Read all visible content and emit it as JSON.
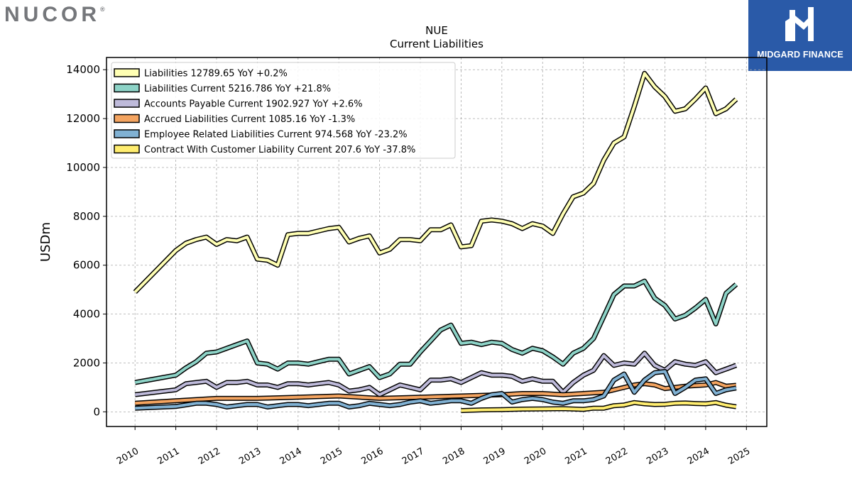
{
  "header": {
    "logo_text": "NUCOR",
    "logo_mark": "®",
    "badge_text": "MIDGARD FINANCE",
    "badge_icon": "stylized-m-icon"
  },
  "chart_data": {
    "type": "line",
    "title": "NUE",
    "subtitle": "Current  Liabilities",
    "ylabel": "USDm",
    "xlabel": "",
    "xlim": [
      2009.3,
      2025.5
    ],
    "ylim": [
      -600,
      14500
    ],
    "yticks": [
      0,
      2000,
      4000,
      6000,
      8000,
      10000,
      12000,
      14000
    ],
    "xticks": [
      2010,
      2011,
      2012,
      2013,
      2014,
      2015,
      2016,
      2017,
      2018,
      2019,
      2020,
      2021,
      2022,
      2023,
      2024,
      2025
    ],
    "grid": true,
    "legend_position": "upper-left",
    "series": [
      {
        "name": "Liabilities",
        "legend_label": "Liabilities  12789.65 YoY +0.2%",
        "color": "#ffffb3",
        "x": [
          2010.0,
          2011.0,
          2011.25,
          2011.5,
          2011.75,
          2012.0,
          2012.25,
          2012.5,
          2012.75,
          2013.0,
          2013.25,
          2013.5,
          2013.75,
          2014.0,
          2014.25,
          2014.5,
          2014.75,
          2015.0,
          2015.25,
          2015.5,
          2015.75,
          2016.0,
          2016.25,
          2016.5,
          2016.75,
          2017.0,
          2017.25,
          2017.5,
          2017.75,
          2018.0,
          2018.25,
          2018.5,
          2018.75,
          2019.0,
          2019.25,
          2019.5,
          2019.75,
          2020.0,
          2020.25,
          2020.5,
          2020.75,
          2021.0,
          2021.25,
          2021.5,
          2021.75,
          2022.0,
          2022.25,
          2022.5,
          2022.75,
          2023.0,
          2023.25,
          2023.5,
          2023.75,
          2024.0,
          2024.25,
          2024.5,
          2024.75
        ],
        "values": [
          4900,
          6600,
          6900,
          7050,
          7150,
          6850,
          7050,
          7000,
          7150,
          6250,
          6200,
          6000,
          7250,
          7300,
          7300,
          7400,
          7500,
          7550,
          6950,
          7100,
          7200,
          6500,
          6650,
          7050,
          7050,
          7000,
          7450,
          7450,
          7650,
          6750,
          6800,
          7800,
          7850,
          7800,
          7700,
          7500,
          7700,
          7600,
          7300,
          8100,
          8800,
          8950,
          9350,
          10300,
          11000,
          11250,
          12500,
          13850,
          13300,
          12900,
          12300,
          12400,
          12800,
          13250,
          12200,
          12400,
          12790
        ]
      },
      {
        "name": "Liabilities Current",
        "legend_label": "Liabilities Current  5216.786 YoY +21.8%",
        "color": "#8dd3c7",
        "x": [
          2010.0,
          2011.0,
          2011.25,
          2011.5,
          2011.75,
          2012.0,
          2012.25,
          2012.5,
          2012.75,
          2013.0,
          2013.25,
          2013.5,
          2013.75,
          2014.0,
          2014.25,
          2014.5,
          2014.75,
          2015.0,
          2015.25,
          2015.5,
          2015.75,
          2016.0,
          2016.25,
          2016.5,
          2016.75,
          2017.0,
          2017.25,
          2017.5,
          2017.75,
          2018.0,
          2018.25,
          2018.5,
          2018.75,
          2019.0,
          2019.25,
          2019.5,
          2019.75,
          2020.0,
          2020.25,
          2020.5,
          2020.75,
          2021.0,
          2021.25,
          2021.5,
          2021.75,
          2022.0,
          2022.25,
          2022.5,
          2022.75,
          2023.0,
          2023.25,
          2023.5,
          2023.75,
          2024.0,
          2024.25,
          2024.5,
          2024.75
        ],
        "values": [
          1200,
          1500,
          1800,
          2050,
          2400,
          2450,
          2600,
          2750,
          2900,
          2000,
          1950,
          1750,
          2000,
          2000,
          1950,
          2050,
          2150,
          2150,
          1550,
          1700,
          1850,
          1400,
          1550,
          1950,
          1950,
          2450,
          2900,
          3350,
          3550,
          2800,
          2850,
          2750,
          2850,
          2800,
          2550,
          2400,
          2600,
          2500,
          2250,
          1950,
          2400,
          2600,
          3000,
          3900,
          4800,
          5150,
          5150,
          5350,
          4650,
          4350,
          3800,
          3950,
          4250,
          4600,
          3600,
          4850,
          5217
        ]
      },
      {
        "name": "Accounts Payable Current",
        "legend_label": "Accounts Payable Current  1902.927 YoY +2.6%",
        "color": "#bebada",
        "x": [
          2010.0,
          2011.0,
          2011.25,
          2011.5,
          2011.75,
          2012.0,
          2012.25,
          2012.5,
          2012.75,
          2013.0,
          2013.25,
          2013.5,
          2013.75,
          2014.0,
          2014.25,
          2014.5,
          2014.75,
          2015.0,
          2015.25,
          2015.5,
          2015.75,
          2016.0,
          2016.25,
          2016.5,
          2016.75,
          2017.0,
          2017.25,
          2017.5,
          2017.75,
          2018.0,
          2018.25,
          2018.5,
          2018.75,
          2019.0,
          2019.25,
          2019.5,
          2019.75,
          2020.0,
          2020.25,
          2020.5,
          2020.75,
          2021.0,
          2021.25,
          2021.5,
          2021.75,
          2022.0,
          2022.25,
          2022.5,
          2022.75,
          2023.0,
          2023.25,
          2023.5,
          2023.75,
          2024.0,
          2024.25,
          2024.5,
          2024.75
        ],
        "values": [
          700,
          900,
          1150,
          1200,
          1250,
          1000,
          1200,
          1200,
          1250,
          1100,
          1100,
          1000,
          1150,
          1150,
          1100,
          1150,
          1200,
          1100,
          850,
          900,
          1000,
          700,
          900,
          1100,
          1000,
          900,
          1300,
          1300,
          1350,
          1200,
          1400,
          1600,
          1500,
          1500,
          1450,
          1250,
          1350,
          1250,
          1250,
          800,
          1200,
          1500,
          1700,
          2300,
          1900,
          2000,
          1950,
          2400,
          1900,
          1700,
          2050,
          1950,
          1900,
          2050,
          1600,
          1750,
          1903
        ]
      },
      {
        "name": "Accrued Liabilities Current",
        "legend_label": "Accrued Liabilities Current  1085.16 YoY -1.3%",
        "color": "#f4a460",
        "x": [
          2010.0,
          2011.0,
          2012.0,
          2013.0,
          2014.0,
          2015.0,
          2016.0,
          2017.0,
          2018.0,
          2019.0,
          2019.5,
          2020.0,
          2020.5,
          2021.0,
          2021.5,
          2022.0,
          2022.25,
          2022.5,
          2022.75,
          2023.0,
          2023.5,
          2024.0,
          2024.25,
          2024.5,
          2024.75
        ],
        "values": [
          350,
          450,
          550,
          550,
          600,
          650,
          550,
          600,
          650,
          700,
          750,
          750,
          700,
          750,
          800,
          1000,
          1100,
          1150,
          1100,
          950,
          1050,
          1100,
          1200,
          1050,
          1085
        ]
      },
      {
        "name": "Employee Related Liabilities Current",
        "legend_label": "Employee Related Liabilities Current  974.568 YoY -23.2%",
        "color": "#80b1d3",
        "x": [
          2010.0,
          2011.0,
          2011.5,
          2011.75,
          2012.0,
          2012.25,
          2012.5,
          2012.75,
          2013.0,
          2013.25,
          2013.5,
          2013.75,
          2014.0,
          2014.25,
          2014.5,
          2014.75,
          2015.0,
          2015.25,
          2015.5,
          2015.75,
          2016.0,
          2016.25,
          2016.5,
          2016.75,
          2017.0,
          2017.25,
          2017.5,
          2017.75,
          2018.0,
          2018.25,
          2018.5,
          2018.75,
          2019.0,
          2019.25,
          2019.5,
          2019.75,
          2020.0,
          2020.25,
          2020.5,
          2020.75,
          2021.0,
          2021.25,
          2021.5,
          2021.75,
          2022.0,
          2022.25,
          2022.5,
          2022.75,
          2023.0,
          2023.25,
          2023.5,
          2023.75,
          2024.0,
          2024.25,
          2024.5,
          2024.75
        ],
        "values": [
          150,
          220,
          350,
          350,
          300,
          200,
          250,
          300,
          300,
          200,
          250,
          300,
          300,
          250,
          300,
          350,
          350,
          200,
          250,
          350,
          300,
          250,
          300,
          400,
          450,
          350,
          400,
          450,
          450,
          350,
          550,
          700,
          750,
          400,
          500,
          550,
          500,
          400,
          350,
          450,
          450,
          500,
          650,
          1300,
          1550,
          800,
          1300,
          1600,
          1650,
          750,
          1000,
          1300,
          1350,
          750,
          900,
          975
        ]
      },
      {
        "name": "Contract With Customer Liability Current",
        "legend_label": "Contract With Customer Liability Current  207.6 YoY -37.8%",
        "color": "#ffed6f",
        "x": [
          2018.0,
          2018.5,
          2019.0,
          2019.5,
          2020.0,
          2020.5,
          2021.0,
          2021.25,
          2021.5,
          2021.75,
          2022.0,
          2022.25,
          2022.5,
          2022.75,
          2023.0,
          2023.25,
          2023.5,
          2023.75,
          2024.0,
          2024.25,
          2024.5,
          2024.75
        ],
        "values": [
          50,
          80,
          90,
          110,
          120,
          130,
          100,
          150,
          150,
          250,
          280,
          380,
          330,
          300,
          310,
          350,
          360,
          340,
          330,
          380,
          270,
          208
        ]
      }
    ]
  }
}
